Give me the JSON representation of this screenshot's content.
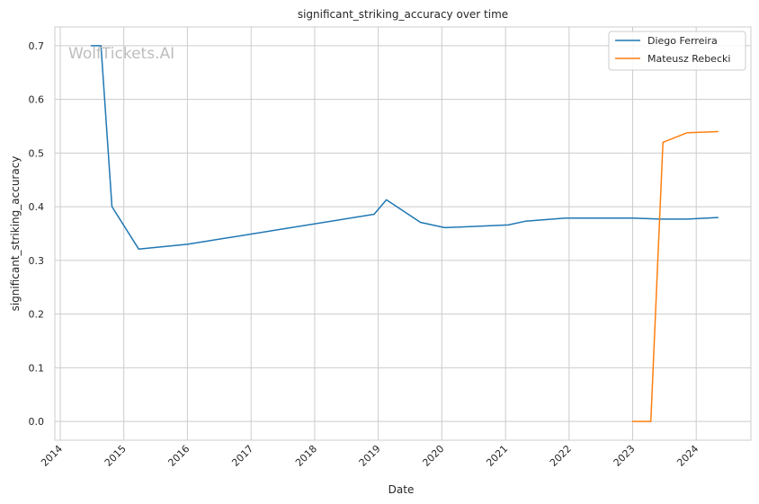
{
  "chart_data": {
    "type": "line",
    "title": "significant_striking_accuracy over time",
    "xlabel": "Date",
    "ylabel": "significant_striking_accuracy",
    "watermark": "WolfTickets.AI",
    "x_type": "date",
    "xlim": [
      "2013-12-01",
      "2024-11-10"
    ],
    "ylim": [
      -0.035,
      0.735
    ],
    "x_ticks": [
      "2014",
      "2015",
      "2016",
      "2017",
      "2018",
      "2019",
      "2020",
      "2021",
      "2022",
      "2023",
      "2024"
    ],
    "y_ticks": [
      "0.0",
      "0.1",
      "0.2",
      "0.3",
      "0.4",
      "0.5",
      "0.6",
      "0.7"
    ],
    "grid": true,
    "legend_position": "top-right",
    "series": [
      {
        "name": "Diego Ferreira",
        "color": "#1f77b4",
        "points": [
          [
            "2014-06-28",
            0.7
          ],
          [
            "2014-08-23",
            0.7
          ],
          [
            "2014-10-25",
            0.4
          ],
          [
            "2015-03-28",
            0.321
          ],
          [
            "2016-01-02",
            0.33
          ],
          [
            "2018-12-08",
            0.386
          ],
          [
            "2019-02-17",
            0.413
          ],
          [
            "2019-08-31",
            0.371
          ],
          [
            "2020-01-18",
            0.361
          ],
          [
            "2021-01-16",
            0.366
          ],
          [
            "2021-04-24",
            0.373
          ],
          [
            "2021-12-11",
            0.379
          ],
          [
            "2023-01-01",
            0.379
          ],
          [
            "2023-06-10",
            0.377
          ],
          [
            "2023-11-11",
            0.377
          ],
          [
            "2024-05-04",
            0.38
          ]
        ]
      },
      {
        "name": "Mateusz Rebecki",
        "color": "#ff7f0e",
        "points": [
          [
            "2023-01-01",
            0.0
          ],
          [
            "2023-04-15",
            0.0
          ],
          [
            "2023-06-24",
            0.52
          ],
          [
            "2023-11-11",
            0.538
          ],
          [
            "2024-05-04",
            0.54
          ]
        ]
      }
    ]
  }
}
